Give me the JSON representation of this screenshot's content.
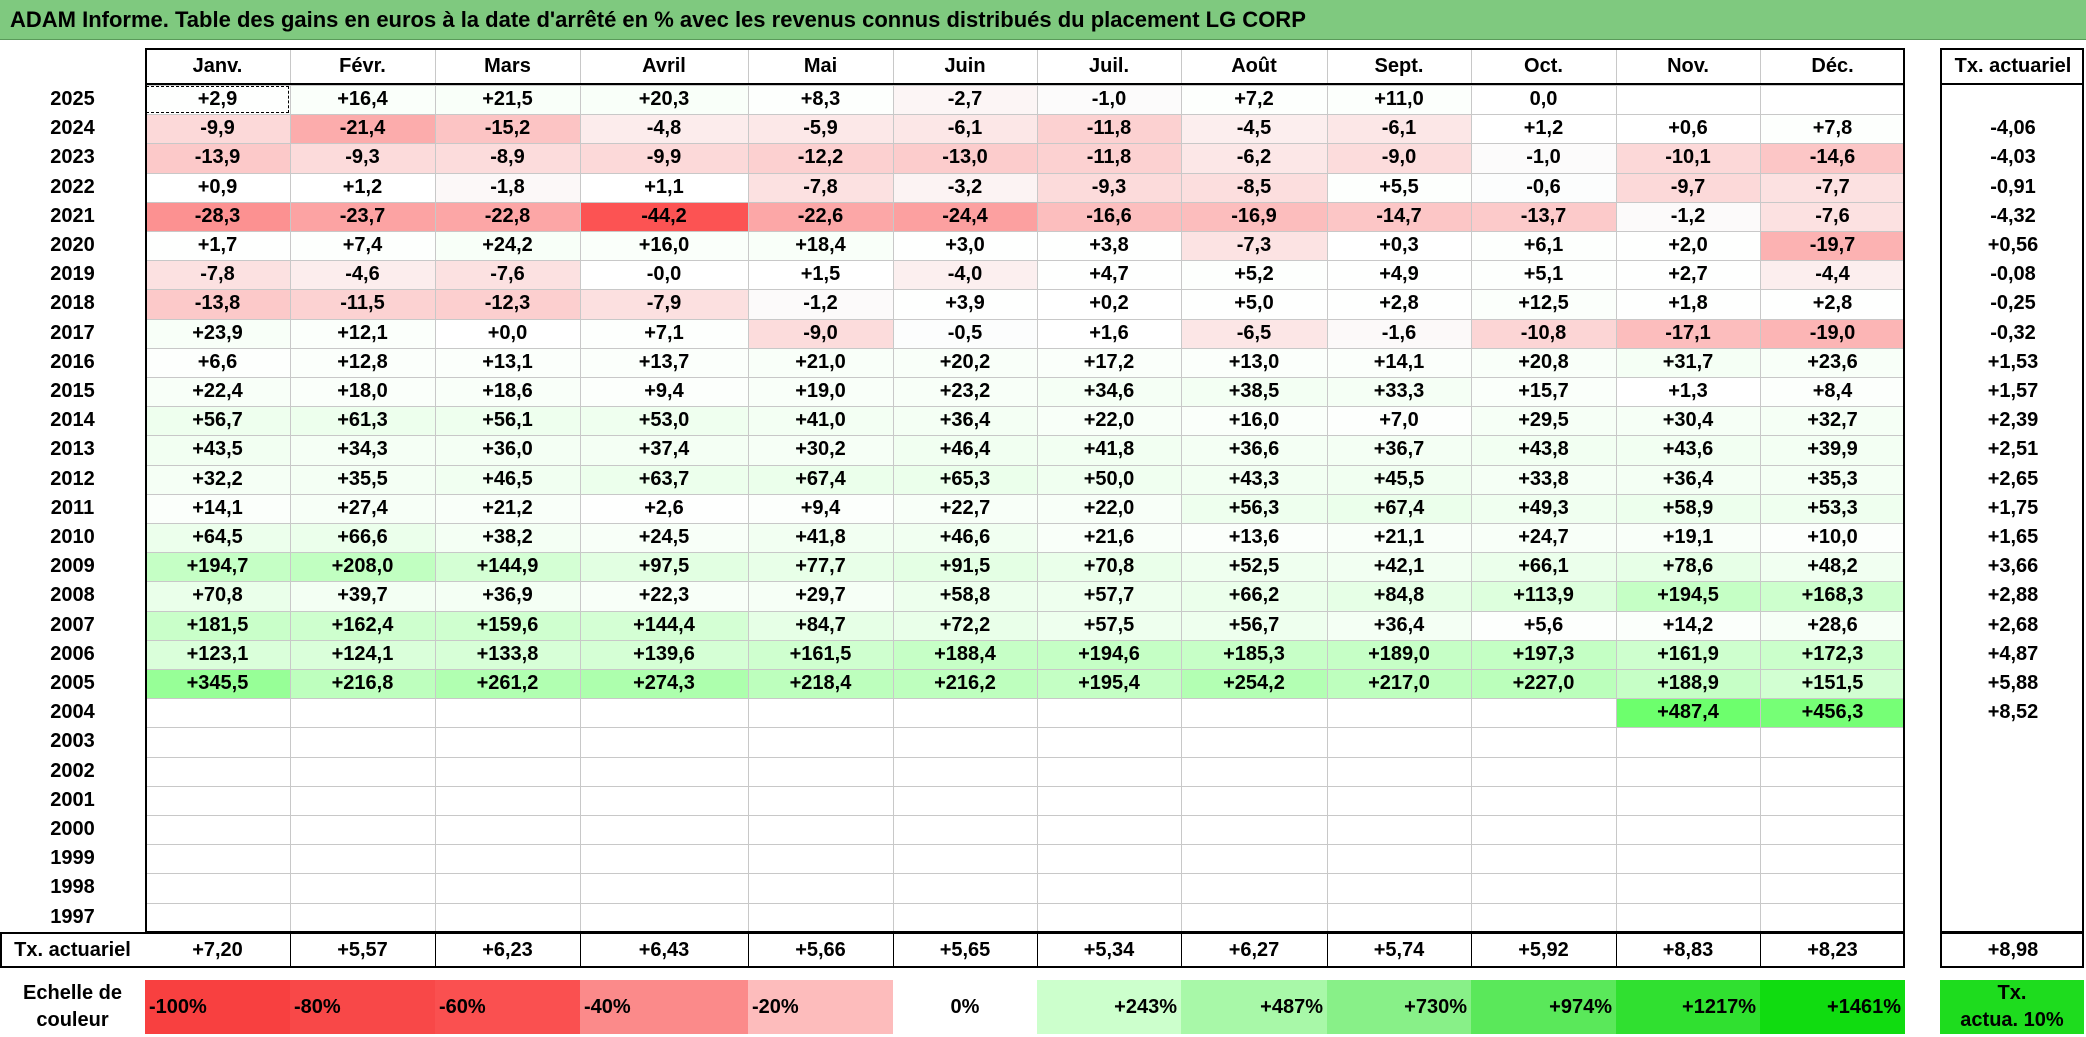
{
  "title": "ADAM Informe. Table des gains en euros à la date d'arrêté en % avec les revenus connus distribués du placement LG CORP",
  "months": [
    "Janv.",
    "Févr.",
    "Mars",
    "Avril",
    "Mai",
    "Juin",
    "Juil.",
    "Août",
    "Sept.",
    "Oct.",
    "Nov.",
    "Déc."
  ],
  "tx_header": "Tx. actuariel",
  "rows": [
    {
      "year": "2025",
      "values": [
        "+2,9",
        "+16,4",
        "+21,5",
        "+20,3",
        "+8,3",
        "-2,7",
        "-1,0",
        "+7,2",
        "+11,0",
        "0,0",
        "",
        ""
      ],
      "tx": ""
    },
    {
      "year": "2024",
      "values": [
        "-9,9",
        "-21,4",
        "-15,2",
        "-4,8",
        "-5,9",
        "-6,1",
        "-11,8",
        "-4,5",
        "-6,1",
        "+1,2",
        "+0,6",
        "+7,8"
      ],
      "tx": "-4,06"
    },
    {
      "year": "2023",
      "values": [
        "-13,9",
        "-9,3",
        "-8,9",
        "-9,9",
        "-12,2",
        "-13,0",
        "-11,8",
        "-6,2",
        "-9,0",
        "-1,0",
        "-10,1",
        "-14,6"
      ],
      "tx": "-4,03"
    },
    {
      "year": "2022",
      "values": [
        "+0,9",
        "+1,2",
        "-1,8",
        "+1,1",
        "-7,8",
        "-3,2",
        "-9,3",
        "-8,5",
        "+5,5",
        "-0,6",
        "-9,7",
        "-7,7"
      ],
      "tx": "-0,91"
    },
    {
      "year": "2021",
      "values": [
        "-28,3",
        "-23,7",
        "-22,8",
        "-44,2",
        "-22,6",
        "-24,4",
        "-16,6",
        "-16,9",
        "-14,7",
        "-13,7",
        "-1,2",
        "-7,6"
      ],
      "tx": "-4,32"
    },
    {
      "year": "2020",
      "values": [
        "+1,7",
        "+7,4",
        "+24,2",
        "+16,0",
        "+18,4",
        "+3,0",
        "+3,8",
        "-7,3",
        "+0,3",
        "+6,1",
        "+2,0",
        "-19,7"
      ],
      "tx": "+0,56"
    },
    {
      "year": "2019",
      "values": [
        "-7,8",
        "-4,6",
        "-7,6",
        "-0,0",
        "+1,5",
        "-4,0",
        "+4,7",
        "+5,2",
        "+4,9",
        "+5,1",
        "+2,7",
        "-4,4"
      ],
      "tx": "-0,08"
    },
    {
      "year": "2018",
      "values": [
        "-13,8",
        "-11,5",
        "-12,3",
        "-7,9",
        "-1,2",
        "+3,9",
        "+0,2",
        "+5,0",
        "+2,8",
        "+12,5",
        "+1,8",
        "+2,8"
      ],
      "tx": "-0,25"
    },
    {
      "year": "2017",
      "values": [
        "+23,9",
        "+12,1",
        "+0,0",
        "+7,1",
        "-9,0",
        "-0,5",
        "+1,6",
        "-6,5",
        "-1,6",
        "-10,8",
        "-17,1",
        "-19,0"
      ],
      "tx": "-0,32"
    },
    {
      "year": "2016",
      "values": [
        "+6,6",
        "+12,8",
        "+13,1",
        "+13,7",
        "+21,0",
        "+20,2",
        "+17,2",
        "+13,0",
        "+14,1",
        "+20,8",
        "+31,7",
        "+23,6"
      ],
      "tx": "+1,53"
    },
    {
      "year": "2015",
      "values": [
        "+22,4",
        "+18,0",
        "+18,6",
        "+9,4",
        "+19,0",
        "+23,2",
        "+34,6",
        "+38,5",
        "+33,3",
        "+15,7",
        "+1,3",
        "+8,4"
      ],
      "tx": "+1,57"
    },
    {
      "year": "2014",
      "values": [
        "+56,7",
        "+61,3",
        "+56,1",
        "+53,0",
        "+41,0",
        "+36,4",
        "+22,0",
        "+16,0",
        "+7,0",
        "+29,5",
        "+30,4",
        "+32,7"
      ],
      "tx": "+2,39"
    },
    {
      "year": "2013",
      "values": [
        "+43,5",
        "+34,3",
        "+36,0",
        "+37,4",
        "+30,2",
        "+46,4",
        "+41,8",
        "+36,6",
        "+36,7",
        "+43,8",
        "+43,6",
        "+39,9"
      ],
      "tx": "+2,51"
    },
    {
      "year": "2012",
      "values": [
        "+32,2",
        "+35,5",
        "+46,5",
        "+63,7",
        "+67,4",
        "+65,3",
        "+50,0",
        "+43,3",
        "+45,5",
        "+33,8",
        "+36,4",
        "+35,3"
      ],
      "tx": "+2,65"
    },
    {
      "year": "2011",
      "values": [
        "+14,1",
        "+27,4",
        "+21,2",
        "+2,6",
        "+9,4",
        "+22,7",
        "+22,0",
        "+56,3",
        "+67,4",
        "+49,3",
        "+58,9",
        "+53,3"
      ],
      "tx": "+1,75"
    },
    {
      "year": "2010",
      "values": [
        "+64,5",
        "+66,6",
        "+38,2",
        "+24,5",
        "+41,8",
        "+46,6",
        "+21,6",
        "+13,6",
        "+21,1",
        "+24,7",
        "+19,1",
        "+10,0"
      ],
      "tx": "+1,65"
    },
    {
      "year": "2009",
      "values": [
        "+194,7",
        "+208,0",
        "+144,9",
        "+97,5",
        "+77,7",
        "+91,5",
        "+70,8",
        "+52,5",
        "+42,1",
        "+66,1",
        "+78,6",
        "+48,2"
      ],
      "tx": "+3,66"
    },
    {
      "year": "2008",
      "values": [
        "+70,8",
        "+39,7",
        "+36,9",
        "+22,3",
        "+29,7",
        "+58,8",
        "+57,7",
        "+66,2",
        "+84,8",
        "+113,9",
        "+194,5",
        "+168,3"
      ],
      "tx": "+2,88"
    },
    {
      "year": "2007",
      "values": [
        "+181,5",
        "+162,4",
        "+159,6",
        "+144,4",
        "+84,7",
        "+72,2",
        "+57,5",
        "+56,7",
        "+36,4",
        "+5,6",
        "+14,2",
        "+28,6"
      ],
      "tx": "+2,68"
    },
    {
      "year": "2006",
      "values": [
        "+123,1",
        "+124,1",
        "+133,8",
        "+139,6",
        "+161,5",
        "+188,4",
        "+194,6",
        "+185,3",
        "+189,0",
        "+197,3",
        "+161,9",
        "+172,3"
      ],
      "tx": "+4,87"
    },
    {
      "year": "2005",
      "values": [
        "+345,5",
        "+216,8",
        "+261,2",
        "+274,3",
        "+218,4",
        "+216,2",
        "+195,4",
        "+254,2",
        "+217,0",
        "+227,0",
        "+188,9",
        "+151,5"
      ],
      "tx": "+5,88"
    },
    {
      "year": "2004",
      "values": [
        "",
        "",
        "",
        "",
        "",
        "",
        "",
        "",
        "",
        "",
        "+487,4",
        "+456,3"
      ],
      "tx": "+8,52"
    },
    {
      "year": "2003",
      "values": [
        "",
        "",
        "",
        "",
        "",
        "",
        "",
        "",
        "",
        "",
        "",
        ""
      ],
      "tx": ""
    },
    {
      "year": "2002",
      "values": [
        "",
        "",
        "",
        "",
        "",
        "",
        "",
        "",
        "",
        "",
        "",
        ""
      ],
      "tx": ""
    },
    {
      "year": "2001",
      "values": [
        "",
        "",
        "",
        "",
        "",
        "",
        "",
        "",
        "",
        "",
        "",
        ""
      ],
      "tx": ""
    },
    {
      "year": "2000",
      "values": [
        "",
        "",
        "",
        "",
        "",
        "",
        "",
        "",
        "",
        "",
        "",
        ""
      ],
      "tx": ""
    },
    {
      "year": "1999",
      "values": [
        "",
        "",
        "",
        "",
        "",
        "",
        "",
        "",
        "",
        "",
        "",
        ""
      ],
      "tx": ""
    },
    {
      "year": "1998",
      "values": [
        "",
        "",
        "",
        "",
        "",
        "",
        "",
        "",
        "",
        "",
        "",
        ""
      ],
      "tx": ""
    },
    {
      "year": "1997",
      "values": [
        "",
        "",
        "",
        "",
        "",
        "",
        "",
        "",
        "",
        "",
        "",
        ""
      ],
      "tx": ""
    }
  ],
  "footer": {
    "label": "Tx. actuariel",
    "values": [
      "+7,20",
      "+5,57",
      "+6,23",
      "+6,43",
      "+5,66",
      "+5,65",
      "+5,34",
      "+6,27",
      "+5,74",
      "+5,92",
      "+8,83",
      "+8,23"
    ],
    "tx": "+8,98"
  },
  "scale": {
    "label_line1": "Echelle de",
    "label_line2": "couleur",
    "items": [
      {
        "label": "-100%",
        "color": "#f84040"
      },
      {
        "label": "-80%",
        "color": "#f84848"
      },
      {
        "label": "-60%",
        "color": "#fa5050"
      },
      {
        "label": "-40%",
        "color": "#fb8a8a"
      },
      {
        "label": "-20%",
        "color": "#fdbcbc"
      },
      {
        "label": "0%",
        "color": "#ffffff"
      },
      {
        "label": "+243%",
        "color": "#ccffcc"
      },
      {
        "label": "+487%",
        "color": "#a8f8a8"
      },
      {
        "label": "+730%",
        "color": "#88f088"
      },
      {
        "label": "+974%",
        "color": "#5ae85a"
      },
      {
        "label": "+1217%",
        "color": "#30e030"
      },
      {
        "label": "+1461%",
        "color": "#10dc10"
      }
    ],
    "tx_line1": "Tx.",
    "tx_line2": "actua. 10%",
    "tx_color": "#1edc1e"
  },
  "colors": {
    "title_bg": "#7fc97f",
    "negative_max": "#fb5050",
    "positive_max": "#00dc00"
  }
}
